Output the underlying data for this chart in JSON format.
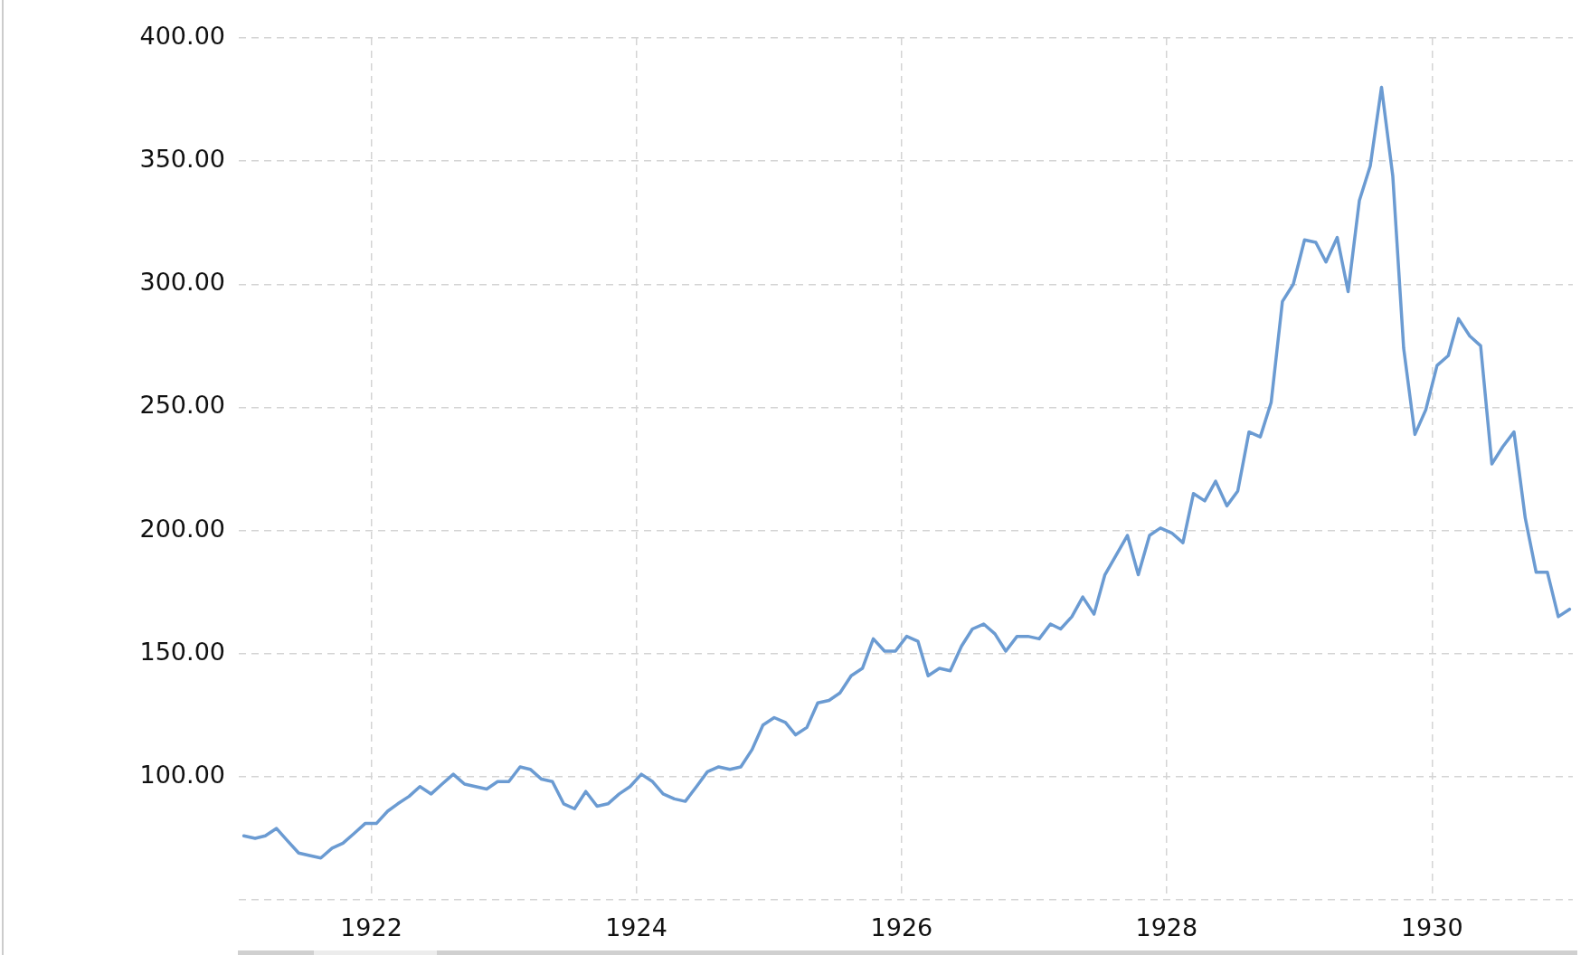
{
  "chart_data": {
    "type": "line",
    "color": "#6b9bd2",
    "x": [
      "1921-01-15",
      "1921-02-15",
      "1921-03-15",
      "1921-04-15",
      "1921-05-15",
      "1921-06-15",
      "1921-07-15",
      "1921-08-15",
      "1921-09-15",
      "1921-10-15",
      "1921-11-15",
      "1921-12-15",
      "1922-01-15",
      "1922-02-15",
      "1922-03-15",
      "1922-04-15",
      "1922-05-15",
      "1922-06-15",
      "1922-07-15",
      "1922-08-15",
      "1922-09-15",
      "1922-10-15",
      "1922-11-15",
      "1922-12-15",
      "1923-01-15",
      "1923-02-15",
      "1923-03-15",
      "1923-04-15",
      "1923-05-15",
      "1923-06-15",
      "1923-07-15",
      "1923-08-15",
      "1923-09-15",
      "1923-10-15",
      "1923-11-15",
      "1923-12-15",
      "1924-01-15",
      "1924-02-15",
      "1924-03-15",
      "1924-04-15",
      "1924-05-15",
      "1924-06-15",
      "1924-07-15",
      "1924-08-15",
      "1924-09-15",
      "1924-10-15",
      "1924-11-15",
      "1924-12-15",
      "1925-01-15",
      "1925-02-15",
      "1925-03-15",
      "1925-04-15",
      "1925-05-15",
      "1925-06-15",
      "1925-07-15",
      "1925-08-15",
      "1925-09-15",
      "1925-10-15",
      "1925-11-15",
      "1925-12-15",
      "1926-01-15",
      "1926-02-15",
      "1926-03-15",
      "1926-04-15",
      "1926-05-15",
      "1926-06-15",
      "1926-07-15",
      "1926-08-15",
      "1926-09-15",
      "1926-10-15",
      "1926-11-15",
      "1926-12-15",
      "1927-01-15",
      "1927-02-15",
      "1927-03-15",
      "1927-04-15",
      "1927-05-15",
      "1927-06-15",
      "1927-07-15",
      "1927-08-15",
      "1927-09-15",
      "1927-10-15",
      "1927-11-15",
      "1927-12-15",
      "1928-01-15",
      "1928-02-15",
      "1928-03-15",
      "1928-04-15",
      "1928-05-15",
      "1928-06-15",
      "1928-07-15",
      "1928-08-15",
      "1928-09-15",
      "1928-10-15",
      "1928-11-15",
      "1928-12-15",
      "1929-01-15",
      "1929-02-15",
      "1929-03-15",
      "1929-04-15",
      "1929-05-15",
      "1929-06-15",
      "1929-07-15",
      "1929-08-15",
      "1929-09-15",
      "1929-10-15",
      "1929-11-15",
      "1929-12-15",
      "1930-01-15",
      "1930-02-15",
      "1930-03-15",
      "1930-04-15",
      "1930-05-15",
      "1930-06-15",
      "1930-07-15",
      "1930-08-15",
      "1930-09-15",
      "1930-10-15",
      "1930-11-15",
      "1930-12-15",
      "1931-01-15"
    ],
    "values": [
      76,
      75,
      76,
      79,
      74,
      69,
      68,
      67,
      71,
      73,
      77,
      81,
      81,
      86,
      89,
      92,
      96,
      93,
      97,
      101,
      97,
      96,
      95,
      98,
      98,
      104,
      103,
      99,
      98,
      89,
      87,
      94,
      88,
      89,
      93,
      96,
      101,
      98,
      93,
      91,
      90,
      96,
      102,
      104,
      103,
      104,
      111,
      121,
      124,
      122,
      117,
      120,
      130,
      131,
      134,
      141,
      144,
      156,
      151,
      151,
      157,
      155,
      141,
      144,
      143,
      153,
      160,
      162,
      158,
      151,
      157,
      157,
      156,
      162,
      160,
      165,
      173,
      166,
      182,
      190,
      198,
      182,
      198,
      201,
      199,
      195,
      215,
      212,
      220,
      210,
      216,
      240,
      238,
      252,
      293,
      300,
      318,
      317,
      309,
      319,
      297,
      334,
      348,
      380,
      344,
      274,
      239,
      249,
      267,
      271,
      286,
      279,
      275,
      227,
      234,
      240,
      205,
      183,
      183,
      165,
      168
    ],
    "xlim": [
      "1921-01-01",
      "1931-01-24"
    ],
    "xticks": [
      "1922",
      "1924",
      "1926",
      "1928",
      "1930"
    ],
    "ylim": [
      50,
      400
    ],
    "yticks": [
      {
        "value": 50,
        "label": null
      },
      {
        "value": 100,
        "label": "100.00"
      },
      {
        "value": 150,
        "label": "150.00"
      },
      {
        "value": 200,
        "label": "200.00"
      },
      {
        "value": 250,
        "label": "250.00"
      },
      {
        "value": 300,
        "label": "300.00"
      },
      {
        "value": 350,
        "label": "350.00"
      },
      {
        "value": 400,
        "label": "400.00"
      }
    ],
    "grid": true
  }
}
